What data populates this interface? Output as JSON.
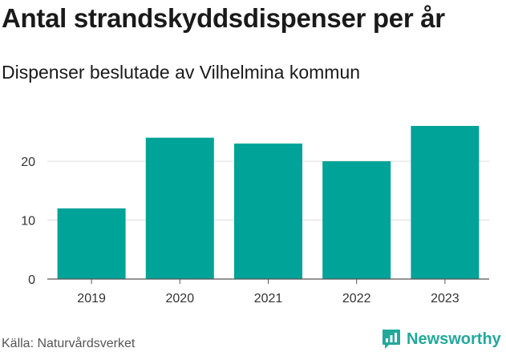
{
  "title": "Antal strandskyddsdispenser per år",
  "subtitle": "Dispenser beslutade av Vilhelmina kommun",
  "source": "Källa: Naturvårdsverket",
  "brand": {
    "name": "Newsworthy",
    "icon": "newsworthy-logo-icon",
    "color": "#23a89b"
  },
  "colors": {
    "bar": "#00a397",
    "grid": "#dddddd",
    "axis": "#555555"
  },
  "chart_data": {
    "type": "bar",
    "title": "Antal strandskyddsdispenser per år",
    "subtitle": "Dispenser beslutade av Vilhelmina kommun",
    "categories": [
      "2019",
      "2020",
      "2021",
      "2022",
      "2023"
    ],
    "values": [
      12,
      24,
      23,
      20,
      26
    ],
    "xlabel": "",
    "ylabel": "",
    "ylim": [
      0,
      27.5
    ],
    "yticks": [
      0,
      10,
      20
    ],
    "grid": true,
    "legend": "none"
  }
}
